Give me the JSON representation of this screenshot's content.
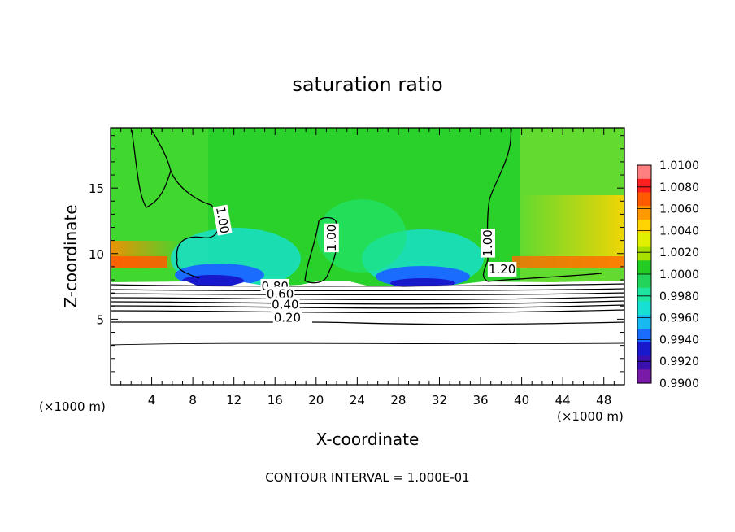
{
  "chart_data": {
    "type": "heatmap",
    "title": "saturation ratio",
    "xlabel": "X-coordinate",
    "ylabel": "Z-coordinate",
    "x_unit": "(×1000 m)",
    "y_unit": "(×1000 m)",
    "xlim": [
      0,
      50
    ],
    "ylim": [
      0,
      19.6
    ],
    "x_ticks": [
      4,
      8,
      12,
      16,
      20,
      24,
      28,
      32,
      36,
      40,
      44,
      48
    ],
    "y_ticks": [
      5,
      10,
      15
    ],
    "footer": "CONTOUR INTERVAL = 1.000E-01",
    "colorbar": {
      "min": 0.99,
      "max": 1.01,
      "ticks": [
        "1.0100",
        "1.0080",
        "1.0060",
        "1.0040",
        "1.0020",
        "1.0000",
        "0.9980",
        "0.9960",
        "0.9940",
        "0.9920",
        "0.9900"
      ],
      "colors": [
        "#ff9a9a",
        "#ff2a2a",
        "#ff8a00",
        "#ffd400",
        "#c8e800",
        "#22cc22",
        "#1ee67a",
        "#16e0d4",
        "#1a6cff",
        "#1818cc",
        "#7a1aa8"
      ]
    },
    "contour_labels": [
      {
        "text": "1.00",
        "x": 10.5,
        "z": 12.5,
        "angle": 80
      },
      {
        "text": "1.00",
        "x": 21.9,
        "z": 11.2,
        "angle": -90
      },
      {
        "text": "1.00",
        "x": 37.1,
        "z": 10.8,
        "angle": -90
      },
      {
        "text": "1.20",
        "x": 38.1,
        "z": 8.5,
        "angle": 0
      },
      {
        "text": "0.80",
        "x": 16.0,
        "z": 7.2,
        "angle": 0
      },
      {
        "text": "0.60",
        "x": 16.5,
        "z": 6.6,
        "angle": 0
      },
      {
        "text": "0.40",
        "x": 17.0,
        "z": 5.8,
        "angle": 0
      },
      {
        "text": "0.20",
        "x": 17.2,
        "z": 4.8,
        "angle": 0
      }
    ]
  }
}
